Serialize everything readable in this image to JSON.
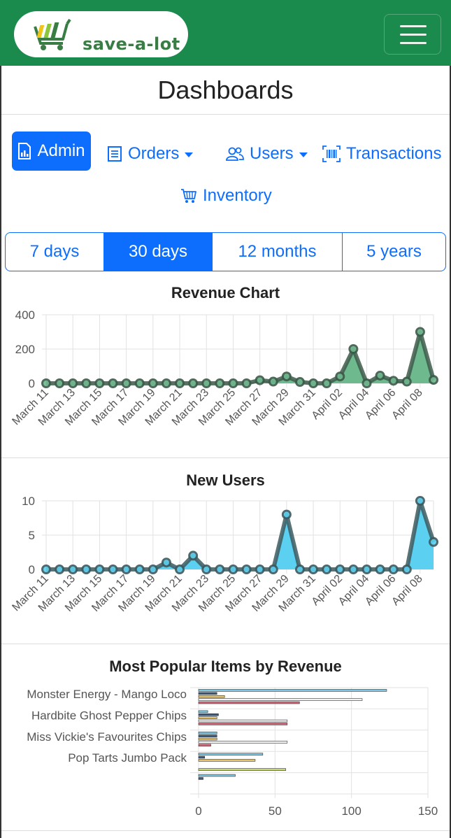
{
  "header": {
    "brand": "save-a-lot",
    "menu_icon": "hamburger-icon",
    "color": "#1b8a4d"
  },
  "page": {
    "title": "Dashboards"
  },
  "nav": {
    "admin": "Admin",
    "orders": "Orders",
    "users": "Users",
    "transactions": "Transactions",
    "inventory": "Inventory"
  },
  "ranges": [
    "7 days",
    "30 days",
    "12 months",
    "5 years"
  ],
  "active_range": "30 days",
  "chart_data": [
    {
      "type": "area",
      "title": "Revenue Chart",
      "x": [
        "March 11",
        "March 12",
        "March 13",
        "March 14",
        "March 15",
        "March 16",
        "March 17",
        "March 18",
        "March 19",
        "March 20",
        "March 21",
        "March 22",
        "March 23",
        "March 24",
        "March 25",
        "March 26",
        "March 27",
        "March 28",
        "March 29",
        "March 30",
        "March 31",
        "April 01",
        "April 02",
        "April 03",
        "April 04",
        "April 05",
        "April 06",
        "April 07",
        "April 08",
        "April 09"
      ],
      "xticks": [
        "March 11",
        "March 13",
        "March 15",
        "March 17",
        "March 19",
        "March 21",
        "March 23",
        "March 25",
        "March 27",
        "March 29",
        "March 31",
        "April 02",
        "April 04",
        "April 06",
        "April 08"
      ],
      "values": [
        0,
        0,
        0,
        0,
        0,
        0,
        0,
        0,
        0,
        0,
        0,
        0,
        0,
        0,
        0,
        0,
        18,
        10,
        40,
        8,
        0,
        0,
        40,
        200,
        0,
        45,
        15,
        10,
        300,
        20
      ],
      "ylim": [
        0,
        400
      ],
      "yticks": [
        0,
        200,
        400
      ],
      "color": "#6fb98f",
      "line_color": "#3d5a4a"
    },
    {
      "type": "area",
      "title": "New Users",
      "x": [
        "March 11",
        "March 12",
        "March 13",
        "March 14",
        "March 15",
        "March 16",
        "March 17",
        "March 18",
        "March 19",
        "March 20",
        "March 21",
        "March 22",
        "March 23",
        "March 24",
        "March 25",
        "March 26",
        "March 27",
        "March 28",
        "March 29",
        "March 30",
        "March 31",
        "April 01",
        "April 02",
        "April 03",
        "April 04",
        "April 05",
        "April 06",
        "April 07",
        "April 08",
        "April 09"
      ],
      "xticks": [
        "March 11",
        "March 13",
        "March 15",
        "March 17",
        "March 19",
        "March 21",
        "March 23",
        "March 25",
        "March 27",
        "March 29",
        "March 31",
        "April 02",
        "April 04",
        "April 06",
        "April 08"
      ],
      "values": [
        0,
        0,
        0,
        0,
        0,
        0,
        0,
        0,
        0,
        1,
        0,
        2,
        0,
        0,
        0,
        0,
        0,
        0,
        8,
        0,
        0,
        0,
        0,
        0,
        0,
        0,
        0,
        0,
        10,
        4
      ],
      "ylim": [
        0,
        10
      ],
      "yticks": [
        0,
        5,
        10
      ],
      "color": "#5bd0f0",
      "line_color": "#3d5a5f"
    },
    {
      "type": "bar",
      "orientation": "horizontal",
      "title": "Most Popular Items by Revenue",
      "categories": [
        "Monster Energy - Mango Loco",
        "Hardbite Ghost Pepper Chips",
        "Miss Vickie's Favourites Chips",
        "Pop Tarts Jumbo Pack",
        ""
      ],
      "series": [
        {
          "color": "#7ec8e3",
          "values": [
            123,
            6,
            12,
            42,
            24
          ]
        },
        {
          "color": "#3b5b7a",
          "values": [
            12,
            13,
            12,
            4,
            3
          ]
        },
        {
          "color": "#e8c56a",
          "values": [
            17,
            12,
            12,
            37,
            0
          ]
        },
        {
          "color": "#f4f4f4",
          "values": [
            107,
            58,
            58,
            0,
            0
          ]
        },
        {
          "color": "#d9667a",
          "values": [
            66,
            58,
            8,
            0,
            0
          ]
        },
        {
          "color": "#c8d96a",
          "values": [
            0,
            0,
            0,
            57,
            0
          ]
        }
      ],
      "xlim": [
        0,
        150
      ],
      "xticks": [
        0,
        50,
        100,
        150
      ]
    }
  ]
}
